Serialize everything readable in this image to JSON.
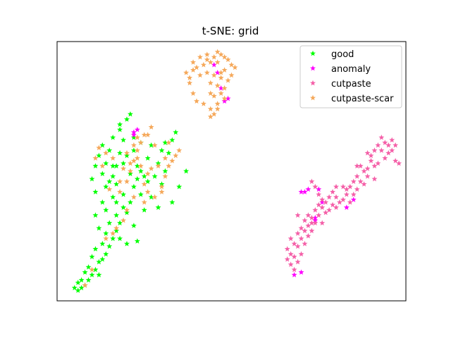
{
  "chart_data": {
    "type": "scatter",
    "title": "t-SNE: grid",
    "xlabel": "",
    "ylabel": "",
    "xlim": [
      0,
      100
    ],
    "ylim": [
      0,
      100
    ],
    "axis_ticks": "hidden",
    "grid": false,
    "legend_position": "top-right",
    "marker": "star",
    "series": [
      {
        "name": "good",
        "color": "#00ff00",
        "points": [
          [
            5,
            5
          ],
          [
            6,
            4
          ],
          [
            7,
            5
          ],
          [
            8,
            6
          ],
          [
            6,
            7
          ],
          [
            9,
            8
          ],
          [
            10,
            10
          ],
          [
            8,
            11
          ],
          [
            11,
            12
          ],
          [
            12,
            10
          ],
          [
            9,
            13
          ],
          [
            12,
            15
          ],
          [
            10,
            17
          ],
          [
            13,
            16
          ],
          [
            14,
            18
          ],
          [
            11,
            20
          ],
          [
            13,
            22
          ],
          [
            15,
            21
          ],
          [
            16,
            24
          ],
          [
            14,
            26
          ],
          [
            17,
            27
          ],
          [
            12,
            28
          ],
          [
            15,
            30
          ],
          [
            18,
            30
          ],
          [
            11,
            33
          ],
          [
            14,
            35
          ],
          [
            17,
            33
          ],
          [
            19,
            36
          ],
          [
            13,
            38
          ],
          [
            16,
            40
          ],
          [
            11,
            42
          ],
          [
            14,
            44
          ],
          [
            17,
            45
          ],
          [
            10,
            47
          ],
          [
            13,
            49
          ],
          [
            16,
            48
          ],
          [
            11,
            52
          ],
          [
            14,
            53
          ],
          [
            17,
            52
          ],
          [
            12,
            56
          ],
          [
            15,
            58
          ],
          [
            18,
            57
          ],
          [
            13,
            60
          ],
          [
            16,
            63
          ],
          [
            19,
            62
          ],
          [
            18,
            66
          ],
          [
            20,
            70
          ],
          [
            21,
            72
          ],
          [
            18,
            68
          ],
          [
            20,
            34
          ],
          [
            22,
            29
          ],
          [
            21,
            38
          ],
          [
            22,
            44
          ],
          [
            24,
            41
          ],
          [
            23,
            47
          ],
          [
            25,
            35
          ],
          [
            27,
            40
          ],
          [
            26,
            46
          ],
          [
            24,
            50
          ],
          [
            28,
            48
          ],
          [
            23,
            52
          ],
          [
            26,
            55
          ],
          [
            29,
            53
          ],
          [
            30,
            58
          ],
          [
            32,
            57
          ],
          [
            27,
            60
          ],
          [
            31,
            61
          ],
          [
            33,
            62
          ],
          [
            34,
            65
          ],
          [
            22,
            58
          ],
          [
            19,
            53
          ],
          [
            21,
            49
          ],
          [
            22,
            63
          ],
          [
            18,
            24
          ],
          [
            20,
            22
          ],
          [
            7,
            8
          ],
          [
            19,
            41
          ],
          [
            23,
            23
          ],
          [
            16,
            52
          ],
          [
            33,
            38
          ],
          [
            35,
            44
          ],
          [
            37,
            50
          ],
          [
            20,
            56
          ],
          [
            24,
            61
          ],
          [
            29,
            36
          ],
          [
            17,
            38
          ],
          [
            15,
            46
          ],
          [
            25,
            48
          ],
          [
            31,
            50
          ],
          [
            30,
            45
          ]
        ]
      },
      {
        "name": "anomaly",
        "color": "#ff00ff",
        "points": [
          [
            22,
            65
          ],
          [
            23,
            66
          ],
          [
            22,
            64
          ],
          [
            47,
            82
          ],
          [
            49,
            78
          ],
          [
            48,
            77
          ],
          [
            45,
            91
          ],
          [
            46,
            88
          ],
          [
            71,
            42
          ],
          [
            72,
            43
          ],
          [
            70,
            42
          ],
          [
            75,
            43
          ],
          [
            76,
            38
          ],
          [
            74,
            31
          ],
          [
            74,
            32
          ],
          [
            83,
            36
          ],
          [
            85,
            39
          ],
          [
            68,
            10
          ],
          [
            70,
            11
          ]
        ]
      },
      {
        "name": "cutpaste",
        "color": "#f460a8",
        "points": [
          [
            66,
            16
          ],
          [
            67,
            14
          ],
          [
            68,
            12
          ],
          [
            67,
            18
          ],
          [
            66,
            20
          ],
          [
            68,
            22
          ],
          [
            67,
            24
          ],
          [
            69,
            21
          ],
          [
            70,
            18
          ],
          [
            69,
            26
          ],
          [
            70,
            28
          ],
          [
            72,
            25
          ],
          [
            71,
            22
          ],
          [
            73,
            27
          ],
          [
            72,
            29
          ],
          [
            74,
            30
          ],
          [
            73,
            32
          ],
          [
            75,
            33
          ],
          [
            76,
            30
          ],
          [
            77,
            34
          ],
          [
            76,
            36
          ],
          [
            78,
            35
          ],
          [
            79,
            37
          ],
          [
            80,
            36
          ],
          [
            81,
            38
          ],
          [
            80,
            40
          ],
          [
            82,
            39
          ],
          [
            83,
            41
          ],
          [
            84,
            38
          ],
          [
            84,
            44
          ],
          [
            85,
            46
          ],
          [
            86,
            43
          ],
          [
            86,
            48
          ],
          [
            87,
            46
          ],
          [
            88,
            50
          ],
          [
            87,
            52
          ],
          [
            89,
            51
          ],
          [
            90,
            54
          ],
          [
            91,
            52
          ],
          [
            90,
            56
          ],
          [
            89,
            57
          ],
          [
            91,
            58
          ],
          [
            92,
            60
          ],
          [
            93,
            58
          ],
          [
            94,
            61
          ],
          [
            95,
            60
          ],
          [
            96,
            58
          ],
          [
            96,
            62
          ],
          [
            97,
            60
          ],
          [
            94,
            55
          ],
          [
            92,
            53
          ],
          [
            88,
            45
          ],
          [
            85,
            41
          ],
          [
            82,
            44
          ],
          [
            79,
            42
          ],
          [
            78,
            40
          ],
          [
            75,
            37
          ],
          [
            74,
            35
          ],
          [
            73,
            30
          ],
          [
            72,
            33
          ],
          [
            71,
            27
          ],
          [
            70,
            24
          ],
          [
            68,
            17
          ],
          [
            69,
            15
          ],
          [
            71,
            31
          ],
          [
            77,
            38
          ],
          [
            86,
            52
          ],
          [
            89,
            48
          ],
          [
            93,
            63
          ],
          [
            95,
            57
          ],
          [
            98,
            53
          ],
          [
            97,
            54
          ],
          [
            91,
            47
          ],
          [
            83,
            43
          ],
          [
            80,
            44
          ],
          [
            76,
            39
          ],
          [
            74,
            44
          ],
          [
            73,
            46
          ],
          [
            75,
            41
          ],
          [
            69,
            33
          ]
        ]
      },
      {
        "name": "cutpaste-scar",
        "color": "#f5a85a",
        "points": [
          [
            37,
            88
          ],
          [
            38,
            86
          ],
          [
            39,
            89
          ],
          [
            40,
            90
          ],
          [
            41,
            87
          ],
          [
            42,
            91
          ],
          [
            43,
            93
          ],
          [
            44,
            92
          ],
          [
            45,
            94
          ],
          [
            46,
            96
          ],
          [
            47,
            95
          ],
          [
            48,
            94
          ],
          [
            49,
            93
          ],
          [
            50,
            91
          ],
          [
            51,
            90
          ],
          [
            43,
            88
          ],
          [
            45,
            87
          ],
          [
            47,
            86
          ],
          [
            49,
            85
          ],
          [
            44,
            84
          ],
          [
            46,
            83
          ],
          [
            48,
            82
          ],
          [
            47,
            80
          ],
          [
            45,
            79
          ],
          [
            48,
            78
          ],
          [
            46,
            76
          ],
          [
            44,
            74
          ],
          [
            45,
            72
          ],
          [
            44,
            71
          ],
          [
            42,
            76
          ],
          [
            40,
            77
          ],
          [
            39,
            92
          ],
          [
            41,
            94
          ],
          [
            43,
            95
          ],
          [
            46,
            92
          ],
          [
            48,
            89
          ],
          [
            38,
            84
          ],
          [
            39,
            80
          ],
          [
            50,
            87
          ],
          [
            47,
            88
          ],
          [
            44,
            80
          ],
          [
            46,
            74
          ],
          [
            22,
            60
          ],
          [
            23,
            63
          ],
          [
            24,
            61
          ],
          [
            25,
            64
          ],
          [
            23,
            58
          ],
          [
            20,
            57
          ],
          [
            22,
            54
          ],
          [
            21,
            50
          ],
          [
            15,
            43
          ],
          [
            18,
            46
          ],
          [
            13,
            52
          ],
          [
            11,
            55
          ],
          [
            14,
            57
          ],
          [
            12,
            59
          ],
          [
            16,
            55
          ],
          [
            25,
            45
          ],
          [
            26,
            49
          ],
          [
            27,
            51
          ],
          [
            29,
            52
          ],
          [
            30,
            44
          ],
          [
            31,
            48
          ],
          [
            32,
            52
          ],
          [
            31,
            55
          ],
          [
            33,
            54
          ],
          [
            34,
            56
          ],
          [
            30,
            42
          ],
          [
            28,
            40
          ],
          [
            26,
            42
          ],
          [
            25,
            38
          ],
          [
            20,
            35
          ],
          [
            19,
            31
          ],
          [
            17,
            28
          ],
          [
            16,
            26
          ],
          [
            14,
            24
          ],
          [
            18,
            42
          ],
          [
            20,
            46
          ],
          [
            22,
            40
          ],
          [
            21,
            53
          ],
          [
            23,
            55
          ],
          [
            8,
            6
          ],
          [
            10,
            12
          ],
          [
            27,
            67
          ],
          [
            26,
            64
          ],
          [
            28,
            60
          ],
          [
            24,
            52
          ],
          [
            19,
            51
          ],
          [
            35,
            58
          ],
          [
            32,
            61
          ]
        ]
      }
    ]
  }
}
